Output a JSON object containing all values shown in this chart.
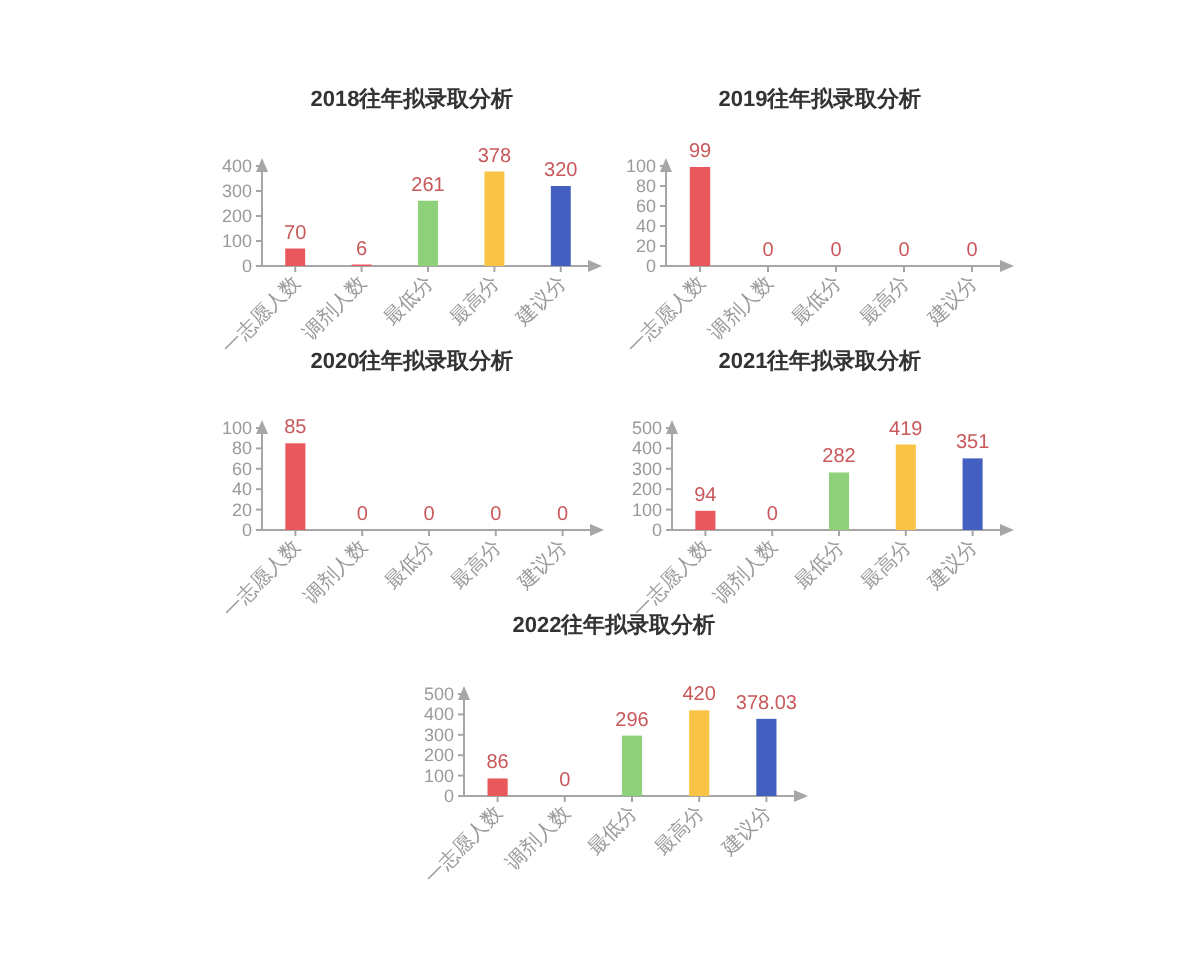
{
  "chart_data": [
    {
      "type": "bar",
      "title": "2018往年拟录取分析",
      "categories": [
        "一志愿人数",
        "调剂人数",
        "最低分",
        "最高分",
        "建议分"
      ],
      "values": [
        70,
        6,
        261,
        378,
        320
      ],
      "colors": [
        "#e8585c",
        "#e8585c",
        "#8fd17a",
        "#f9c445",
        "#4360c0"
      ],
      "ylim": [
        0,
        400
      ],
      "yticks": [
        0,
        100,
        200,
        300,
        400
      ],
      "data_labels": true
    },
    {
      "type": "bar",
      "title": "2019往年拟录取分析",
      "categories": [
        "一志愿人数",
        "调剂人数",
        "最低分",
        "最高分",
        "建议分"
      ],
      "values": [
        99,
        0,
        0,
        0,
        0
      ],
      "colors": [
        "#e8585c",
        "#e8585c",
        "#8fd17a",
        "#f9c445",
        "#4360c0"
      ],
      "ylim": [
        0,
        100
      ],
      "yticks": [
        0,
        20,
        40,
        60,
        80,
        100
      ],
      "data_labels": true
    },
    {
      "type": "bar",
      "title": "2020往年拟录取分析",
      "categories": [
        "一志愿人数",
        "调剂人数",
        "最低分",
        "最高分",
        "建议分"
      ],
      "values": [
        85,
        0,
        0,
        0,
        0
      ],
      "colors": [
        "#e8585c",
        "#e8585c",
        "#8fd17a",
        "#f9c445",
        "#4360c0"
      ],
      "ylim": [
        0,
        100
      ],
      "yticks": [
        0,
        20,
        40,
        60,
        80,
        100
      ],
      "data_labels": true
    },
    {
      "type": "bar",
      "title": "2021往年拟录取分析",
      "categories": [
        "一志愿人数",
        "调剂人数",
        "最低分",
        "最高分",
        "建议分"
      ],
      "values": [
        94,
        0,
        282,
        419,
        351
      ],
      "colors": [
        "#e8585c",
        "#e8585c",
        "#8fd17a",
        "#f9c445",
        "#4360c0"
      ],
      "ylim": [
        0,
        500
      ],
      "yticks": [
        0,
        100,
        200,
        300,
        400,
        500
      ],
      "data_labels": true
    },
    {
      "type": "bar",
      "title": "2022往年拟录取分析",
      "categories": [
        "一志愿人数",
        "调剂人数",
        "最低分",
        "最高分",
        "建议分"
      ],
      "values": [
        86,
        0,
        296,
        420,
        378.03
      ],
      "colors": [
        "#e8585c",
        "#e8585c",
        "#8fd17a",
        "#f9c445",
        "#4360c0"
      ],
      "ylim": [
        0,
        500
      ],
      "yticks": [
        0,
        100,
        200,
        300,
        400,
        500
      ],
      "data_labels": true
    }
  ]
}
